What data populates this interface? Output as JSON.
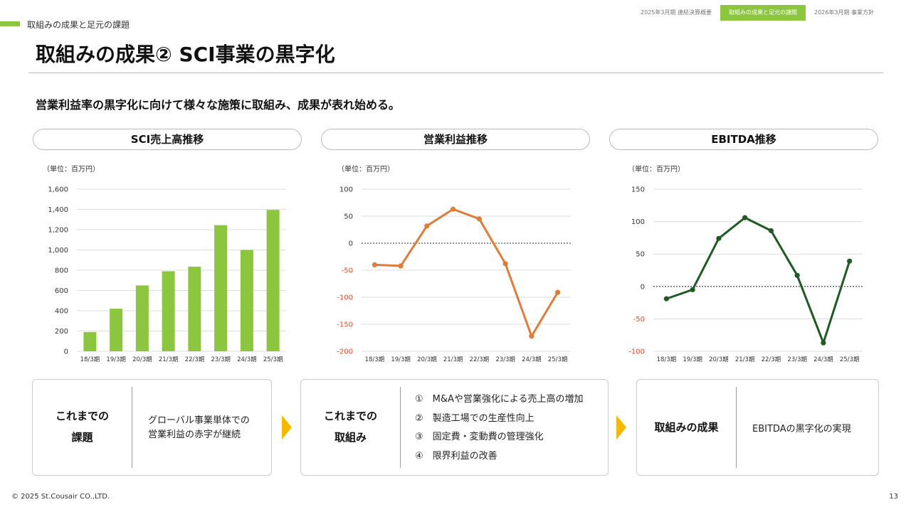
{
  "header": {
    "section_label": "取組みの成果と足元の課題",
    "nav_tabs": [
      {
        "label": "2025年3月期 連結決算概要",
        "active": false
      },
      {
        "label": "取組みの成果と足元の課題",
        "active": true
      },
      {
        "label": "2026年3月期 事業方針",
        "active": false
      }
    ],
    "title": "取組みの成果② SCI事業の黒字化",
    "lead": "営業利益率の黒字化に向けて様々な施策に取組み、成果が表れ始める。"
  },
  "colors": {
    "accent": "#8cc63f",
    "bar": "#8cc63f",
    "operating_profit_line": "#e07b39",
    "ebitda_line": "#1e5a22",
    "negative_tick": "#e0452c",
    "arrow": "#f5b800"
  },
  "chart_data": [
    {
      "type": "bar",
      "title": "SCI売上高推移",
      "unit_label": "（単位：百万円）",
      "categories": [
        "18/3期",
        "19/3期",
        "20/3期",
        "21/3期",
        "22/3期",
        "23/3期",
        "24/3期",
        "25/3期"
      ],
      "values": [
        190,
        420,
        650,
        790,
        835,
        1245,
        1000,
        1395
      ],
      "ylim": [
        0,
        1600
      ],
      "yticks": [
        0,
        200,
        400,
        600,
        800,
        1000,
        1200,
        1400,
        1600
      ],
      "ytick_labels": [
        "0",
        "200",
        "400",
        "600",
        "800",
        "1,000",
        "1,200",
        "1,400",
        "1,600"
      ],
      "grid": true
    },
    {
      "type": "line",
      "title": "営業利益推移",
      "unit_label": "（単位：百万円）",
      "categories": [
        "18/3期",
        "19/3期",
        "20/3期",
        "21/3期",
        "22/3期",
        "23/3期",
        "24/3期",
        "25/3期"
      ],
      "values": [
        -40,
        -42,
        32,
        63,
        45,
        -38,
        -172,
        -91
      ],
      "ylim": [
        -200,
        100
      ],
      "yticks": [
        -200,
        -150,
        -100,
        -50,
        0,
        50,
        100
      ],
      "ytick_labels": [
        "-200",
        "-150",
        "-100",
        "-50",
        "0",
        "50",
        "100"
      ],
      "grid": true,
      "zero_line": "dotted"
    },
    {
      "type": "line",
      "title": "EBITDA推移",
      "unit_label": "（単位：百万円）",
      "categories": [
        "18/3期",
        "19/3期",
        "20/3期",
        "21/3期",
        "22/3期",
        "23/3期",
        "24/3期",
        "25/3期"
      ],
      "values": [
        -19,
        -5,
        74,
        106,
        86,
        17,
        -87,
        39
      ],
      "ylim": [
        -100,
        150
      ],
      "yticks": [
        -100,
        -50,
        0,
        50,
        100,
        150
      ],
      "ytick_labels": [
        "-100",
        "-50",
        "0",
        "50",
        "100",
        "150"
      ],
      "grid": true,
      "zero_line": "dotted"
    }
  ],
  "boxes": {
    "issues": {
      "heading_line1": "これまでの",
      "heading_line2": "課題",
      "text_line1": "グローバル事業単体での",
      "text_line2": "営業利益の赤字が継続"
    },
    "efforts": {
      "heading_line1": "これまでの",
      "heading_line2": "取組み",
      "items": [
        "①　M&Aや営業強化による売上高の増加",
        "②　製造工場での生産性向上",
        "③　固定費・変動費の管理強化",
        "④　限界利益の改善"
      ]
    },
    "results": {
      "heading": "取組みの成果",
      "text": "EBITDAの黒字化の実現"
    }
  },
  "footer": {
    "copyright": "© 2025 St.Cousair CO.,LTD.",
    "page_number": "13"
  }
}
